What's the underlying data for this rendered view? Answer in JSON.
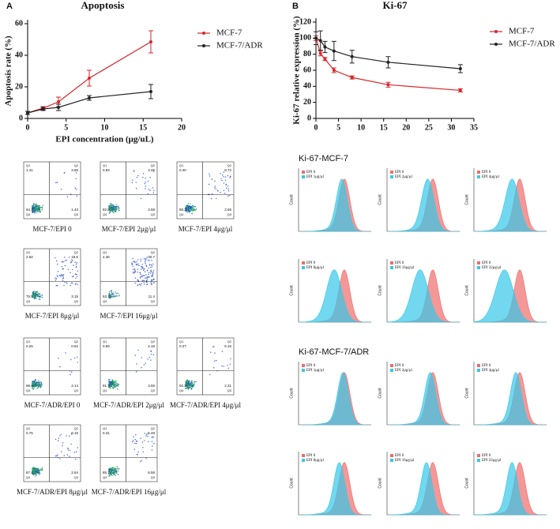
{
  "chart_data": [
    {
      "type": "line",
      "panel": "A",
      "title": "Apoptosis",
      "x_label": "EPI concentration (μg/uL)",
      "y_label": "Apoptosis rate (%)",
      "x": [
        0,
        2,
        4,
        8,
        16
      ],
      "xlim": [
        0,
        20
      ],
      "xticks": [
        0,
        5,
        10,
        15,
        20
      ],
      "ylim": [
        0,
        60
      ],
      "yticks": [
        0,
        20,
        40,
        60
      ],
      "legend": "upper right",
      "series": [
        {
          "name": "MCF-7",
          "color": "#d9262b",
          "values": [
            3.5,
            6.5,
            10.5,
            25.5,
            48.5
          ],
          "errors": [
            1,
            1,
            3,
            5,
            7
          ]
        },
        {
          "name": "MCF-7/ADR",
          "color": "#222222",
          "values": [
            3.5,
            6,
            7,
            13,
            17
          ],
          "errors": [
            1,
            1,
            2,
            1.5,
            4.5
          ]
        }
      ]
    },
    {
      "type": "line",
      "panel": "B",
      "title": "Ki-67",
      "y_label": "Ki-67 relative expression (%)",
      "x": [
        0,
        1,
        2,
        4,
        8,
        16,
        32
      ],
      "xlim": [
        0,
        35
      ],
      "xticks": [
        0,
        5,
        10,
        15,
        20,
        25,
        30,
        35
      ],
      "ylim": [
        0,
        120
      ],
      "yticks": [
        0,
        20,
        40,
        60,
        80,
        100,
        120
      ],
      "legend": "upper right",
      "series": [
        {
          "name": "MCF-7",
          "color": "#d9262b",
          "values": [
            100,
            81,
            74,
            60,
            51,
            42,
            35
          ],
          "errors": [
            3,
            3,
            2,
            3,
            2,
            3,
            2
          ]
        },
        {
          "name": "MCF-7/ADR",
          "color": "#222222",
          "values": [
            100,
            97,
            89,
            84,
            77,
            70,
            62
          ],
          "errors": [
            8,
            12,
            7,
            12,
            8,
            7,
            5
          ]
        }
      ]
    }
  ],
  "flow_apoptosis": {
    "quadrant_names": [
      "Q1",
      "Q2",
      "Q3",
      "Q4"
    ],
    "panels": [
      {
        "caption": "MCF-7/EPI 0",
        "quadrants": [
          "1.41",
          "3.86",
          "1.43",
          "94.3"
        ]
      },
      {
        "caption": "MCF-7/EPI 2μg/μl",
        "quadrants": [
          "0.93",
          "3.49",
          "3.58",
          "92.0"
        ]
      },
      {
        "caption": "MCF-7/EPI 4μg/μl",
        "quadrants": [
          "0.40",
          "8.72",
          "2.65",
          "88.2"
        ]
      },
      {
        "caption": "MCF-7/EPI 8μg/μl",
        "quadrants": [
          "2.82",
          "18.5",
          "3.15",
          "75.5"
        ]
      },
      {
        "caption": "MCF-7/EPI 16μg/μl",
        "quadrants": [
          "4.36",
          "30.7",
          "11.4",
          "53.7"
        ]
      },
      {
        "caption": "MCF-7/ADR/EPI 0",
        "quadrants": [
          "0.26",
          "0.62",
          "2.14",
          "96.9"
        ]
      },
      {
        "caption": "MCF-7/ADR/EPI 2μg/μl",
        "quadrants": [
          "0.56",
          "4.18",
          "3.55",
          "91.7"
        ]
      },
      {
        "caption": "MCF-7/ADR/EPI 4μg/μl",
        "quadrants": [
          "0.27",
          "5.16",
          "2.31",
          "92.3"
        ]
      },
      {
        "caption": "MCF-7/ADR/EPI 8μg/μl",
        "quadrants": [
          "0.75",
          "8.15",
          "2.64",
          "87.4"
        ]
      },
      {
        "caption": "MCF-7/ADR/EPI 16μg/μl",
        "quadrants": [
          "0.31",
          "5.49",
          "8.58",
          "85.7"
        ]
      }
    ]
  },
  "flow_ki67": {
    "y_label": "Count",
    "sections": [
      {
        "title": "Ki-67-MCF-7",
        "panels": [
          [
            "EPI 0",
            "EPI 1μg/μl"
          ],
          [
            "EPI 0",
            "EPI 2μg/μl"
          ],
          [
            "EPI 0",
            "EPI 4μg/μl"
          ],
          [
            "EPI 0",
            "EPI 8μg/μl"
          ],
          [
            "EPI 0",
            "EPI 16μg/μl"
          ],
          [
            "EPI 0",
            "EPI 32μg/μl"
          ]
        ]
      },
      {
        "title": "Ki-67-MCF-7/ADR",
        "panels": [
          [
            "EPI 0",
            "EPI 1μg/μl"
          ],
          [
            "EPI 0",
            "EPI 2μg/μl"
          ],
          [
            "EPI 0",
            "EPI 4μg/μl"
          ],
          [
            "EPI 0",
            "EPI 8μg/μl"
          ],
          [
            "EPI 0",
            "EPI 16μg/μl"
          ],
          [
            "EPI 0",
            "EPI 32μg/μl"
          ]
        ]
      }
    ]
  }
}
